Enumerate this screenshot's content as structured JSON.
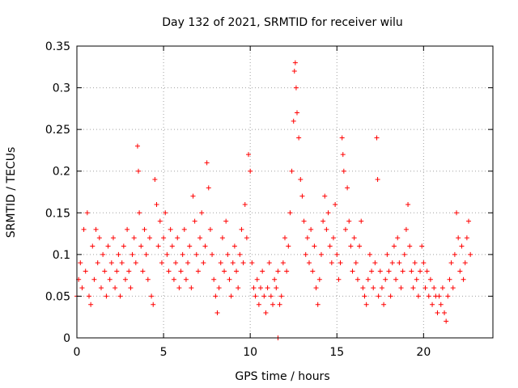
{
  "chart_data": {
    "type": "scatter",
    "title": "Day 132 of 2021, SRMTID for receiver wilu",
    "xlabel": "GPS time / hours",
    "ylabel": "SRMTID / TECUs",
    "xlim": [
      0,
      24
    ],
    "ylim": [
      0,
      0.35
    ],
    "xticks": [
      0,
      5,
      10,
      15,
      20
    ],
    "xtick_labels": [
      "0",
      "5",
      "10",
      "15",
      "20"
    ],
    "yticks": [
      0,
      0.05,
      0.1,
      0.15,
      0.2,
      0.25,
      0.3,
      0.35
    ],
    "ytick_labels": [
      "0",
      "0.05",
      "0.1",
      "0.15",
      "0.2",
      "0.25",
      "0.3",
      "0.35"
    ],
    "grid": true,
    "marker": "+",
    "color": "#ff0000",
    "series": [
      {
        "name": "SRMTID",
        "points": [
          [
            0.0,
            0.05
          ],
          [
            0.1,
            0.07
          ],
          [
            0.2,
            0.09
          ],
          [
            0.3,
            0.06
          ],
          [
            0.4,
            0.13
          ],
          [
            0.5,
            0.08
          ],
          [
            0.6,
            0.15
          ],
          [
            0.7,
            0.05
          ],
          [
            0.8,
            0.04
          ],
          [
            0.9,
            0.11
          ],
          [
            1.0,
            0.07
          ],
          [
            1.1,
            0.13
          ],
          [
            1.2,
            0.09
          ],
          [
            1.3,
            0.12
          ],
          [
            1.4,
            0.06
          ],
          [
            1.5,
            0.1
          ],
          [
            1.6,
            0.08
          ],
          [
            1.7,
            0.05
          ],
          [
            1.8,
            0.11
          ],
          [
            1.9,
            0.07
          ],
          [
            2.0,
            0.09
          ],
          [
            2.1,
            0.12
          ],
          [
            2.2,
            0.06
          ],
          [
            2.3,
            0.08
          ],
          [
            2.4,
            0.1
          ],
          [
            2.5,
            0.05
          ],
          [
            2.6,
            0.09
          ],
          [
            2.7,
            0.11
          ],
          [
            2.8,
            0.07
          ],
          [
            2.9,
            0.13
          ],
          [
            3.0,
            0.08
          ],
          [
            3.1,
            0.06
          ],
          [
            3.2,
            0.1
          ],
          [
            3.3,
            0.12
          ],
          [
            3.4,
            0.09
          ],
          [
            3.5,
            0.23
          ],
          [
            3.55,
            0.2
          ],
          [
            3.6,
            0.15
          ],
          [
            3.7,
            0.11
          ],
          [
            3.8,
            0.08
          ],
          [
            3.9,
            0.13
          ],
          [
            4.0,
            0.1
          ],
          [
            4.1,
            0.07
          ],
          [
            4.2,
            0.12
          ],
          [
            4.3,
            0.05
          ],
          [
            4.4,
            0.04
          ],
          [
            4.5,
            0.19
          ],
          [
            4.6,
            0.16
          ],
          [
            4.7,
            0.11
          ],
          [
            4.8,
            0.14
          ],
          [
            4.9,
            0.09
          ],
          [
            5.0,
            0.12
          ],
          [
            5.1,
            0.15
          ],
          [
            5.2,
            0.1
          ],
          [
            5.3,
            0.08
          ],
          [
            5.4,
            0.13
          ],
          [
            5.5,
            0.11
          ],
          [
            5.6,
            0.07
          ],
          [
            5.7,
            0.09
          ],
          [
            5.8,
            0.12
          ],
          [
            5.9,
            0.06
          ],
          [
            6.0,
            0.08
          ],
          [
            6.1,
            0.1
          ],
          [
            6.2,
            0.13
          ],
          [
            6.3,
            0.07
          ],
          [
            6.4,
            0.09
          ],
          [
            6.5,
            0.11
          ],
          [
            6.6,
            0.06
          ],
          [
            6.7,
            0.17
          ],
          [
            6.8,
            0.14
          ],
          [
            6.9,
            0.1
          ],
          [
            7.0,
            0.08
          ],
          [
            7.1,
            0.12
          ],
          [
            7.2,
            0.15
          ],
          [
            7.3,
            0.09
          ],
          [
            7.4,
            0.11
          ],
          [
            7.5,
            0.21
          ],
          [
            7.6,
            0.18
          ],
          [
            7.7,
            0.13
          ],
          [
            7.8,
            0.1
          ],
          [
            7.9,
            0.07
          ],
          [
            8.0,
            0.05
          ],
          [
            8.1,
            0.03
          ],
          [
            8.2,
            0.06
          ],
          [
            8.3,
            0.09
          ],
          [
            8.4,
            0.12
          ],
          [
            8.5,
            0.08
          ],
          [
            8.6,
            0.14
          ],
          [
            8.7,
            0.1
          ],
          [
            8.8,
            0.07
          ],
          [
            8.9,
            0.05
          ],
          [
            9.0,
            0.09
          ],
          [
            9.1,
            0.11
          ],
          [
            9.2,
            0.08
          ],
          [
            9.3,
            0.06
          ],
          [
            9.4,
            0.1
          ],
          [
            9.5,
            0.13
          ],
          [
            9.6,
            0.09
          ],
          [
            9.7,
            0.16
          ],
          [
            9.8,
            0.12
          ],
          [
            9.9,
            0.22
          ],
          [
            10.0,
            0.2
          ],
          [
            10.1,
            0.09
          ],
          [
            10.2,
            0.06
          ],
          [
            10.3,
            0.05
          ],
          [
            10.4,
            0.07
          ],
          [
            10.5,
            0.04
          ],
          [
            10.6,
            0.06
          ],
          [
            10.7,
            0.08
          ],
          [
            10.8,
            0.05
          ],
          [
            10.9,
            0.03
          ],
          [
            11.0,
            0.06
          ],
          [
            11.1,
            0.09
          ],
          [
            11.2,
            0.05
          ],
          [
            11.3,
            0.04
          ],
          [
            11.4,
            0.07
          ],
          [
            11.5,
            0.06
          ],
          [
            11.6,
            0.08
          ],
          [
            11.7,
            0.04
          ],
          [
            11.8,
            0.05
          ],
          [
            11.9,
            0.09
          ],
          [
            12.0,
            0.12
          ],
          [
            12.1,
            0.08
          ],
          [
            12.2,
            0.11
          ],
          [
            12.3,
            0.15
          ],
          [
            12.4,
            0.2
          ],
          [
            12.5,
            0.26
          ],
          [
            12.55,
            0.32
          ],
          [
            12.6,
            0.33
          ],
          [
            12.65,
            0.3
          ],
          [
            12.7,
            0.27
          ],
          [
            12.8,
            0.24
          ],
          [
            12.9,
            0.19
          ],
          [
            13.0,
            0.17
          ],
          [
            13.1,
            0.14
          ],
          [
            13.2,
            0.1
          ],
          [
            13.3,
            0.12
          ],
          [
            13.4,
            0.09
          ],
          [
            13.5,
            0.13
          ],
          [
            13.6,
            0.08
          ],
          [
            13.7,
            0.11
          ],
          [
            13.8,
            0.06
          ],
          [
            13.9,
            0.04
          ],
          [
            14.0,
            0.07
          ],
          [
            14.1,
            0.1
          ],
          [
            14.2,
            0.14
          ],
          [
            14.3,
            0.17
          ],
          [
            14.4,
            0.13
          ],
          [
            14.5,
            0.15
          ],
          [
            14.6,
            0.11
          ],
          [
            14.7,
            0.09
          ],
          [
            14.8,
            0.12
          ],
          [
            14.9,
            0.16
          ],
          [
            15.0,
            0.1
          ],
          [
            15.1,
            0.07
          ],
          [
            15.2,
            0.09
          ],
          [
            15.3,
            0.24
          ],
          [
            15.35,
            0.22
          ],
          [
            15.4,
            0.2
          ],
          [
            15.5,
            0.13
          ],
          [
            15.6,
            0.18
          ],
          [
            15.7,
            0.14
          ],
          [
            15.8,
            0.11
          ],
          [
            15.9,
            0.08
          ],
          [
            16.0,
            0.12
          ],
          [
            16.1,
            0.09
          ],
          [
            16.2,
            0.07
          ],
          [
            16.3,
            0.11
          ],
          [
            16.4,
            0.14
          ],
          [
            16.5,
            0.06
          ],
          [
            16.6,
            0.05
          ],
          [
            16.7,
            0.04
          ],
          [
            16.8,
            0.07
          ],
          [
            16.9,
            0.1
          ],
          [
            17.0,
            0.08
          ],
          [
            17.1,
            0.06
          ],
          [
            17.2,
            0.09
          ],
          [
            17.3,
            0.24
          ],
          [
            17.35,
            0.19
          ],
          [
            17.4,
            0.05
          ],
          [
            17.5,
            0.08
          ],
          [
            17.6,
            0.06
          ],
          [
            17.7,
            0.04
          ],
          [
            17.8,
            0.07
          ],
          [
            17.9,
            0.1
          ],
          [
            18.0,
            0.08
          ],
          [
            18.1,
            0.05
          ],
          [
            18.2,
            0.09
          ],
          [
            18.3,
            0.11
          ],
          [
            18.4,
            0.07
          ],
          [
            18.5,
            0.12
          ],
          [
            18.6,
            0.09
          ],
          [
            18.7,
            0.06
          ],
          [
            18.8,
            0.08
          ],
          [
            18.9,
            0.1
          ],
          [
            19.0,
            0.13
          ],
          [
            19.1,
            0.16
          ],
          [
            19.2,
            0.11
          ],
          [
            19.3,
            0.08
          ],
          [
            19.4,
            0.06
          ],
          [
            19.5,
            0.09
          ],
          [
            19.6,
            0.07
          ],
          [
            19.7,
            0.05
          ],
          [
            19.8,
            0.08
          ],
          [
            19.9,
            0.11
          ],
          [
            20.0,
            0.09
          ],
          [
            20.1,
            0.06
          ],
          [
            20.2,
            0.08
          ],
          [
            20.3,
            0.05
          ],
          [
            20.4,
            0.07
          ],
          [
            20.5,
            0.04
          ],
          [
            20.6,
            0.06
          ],
          [
            20.7,
            0.05
          ],
          [
            20.8,
            0.03
          ],
          [
            20.9,
            0.05
          ],
          [
            21.0,
            0.04
          ],
          [
            21.1,
            0.06
          ],
          [
            21.2,
            0.03
          ],
          [
            21.3,
            0.02
          ],
          [
            21.4,
            0.05
          ],
          [
            21.5,
            0.07
          ],
          [
            21.6,
            0.09
          ],
          [
            21.7,
            0.06
          ],
          [
            21.8,
            0.1
          ],
          [
            21.9,
            0.15
          ],
          [
            22.0,
            0.12
          ],
          [
            22.1,
            0.08
          ],
          [
            22.2,
            0.11
          ],
          [
            22.3,
            0.07
          ],
          [
            22.4,
            0.09
          ],
          [
            22.5,
            0.12
          ],
          [
            22.6,
            0.14
          ],
          [
            22.7,
            0.1
          ],
          [
            11.6,
            0.0
          ]
        ]
      }
    ]
  }
}
